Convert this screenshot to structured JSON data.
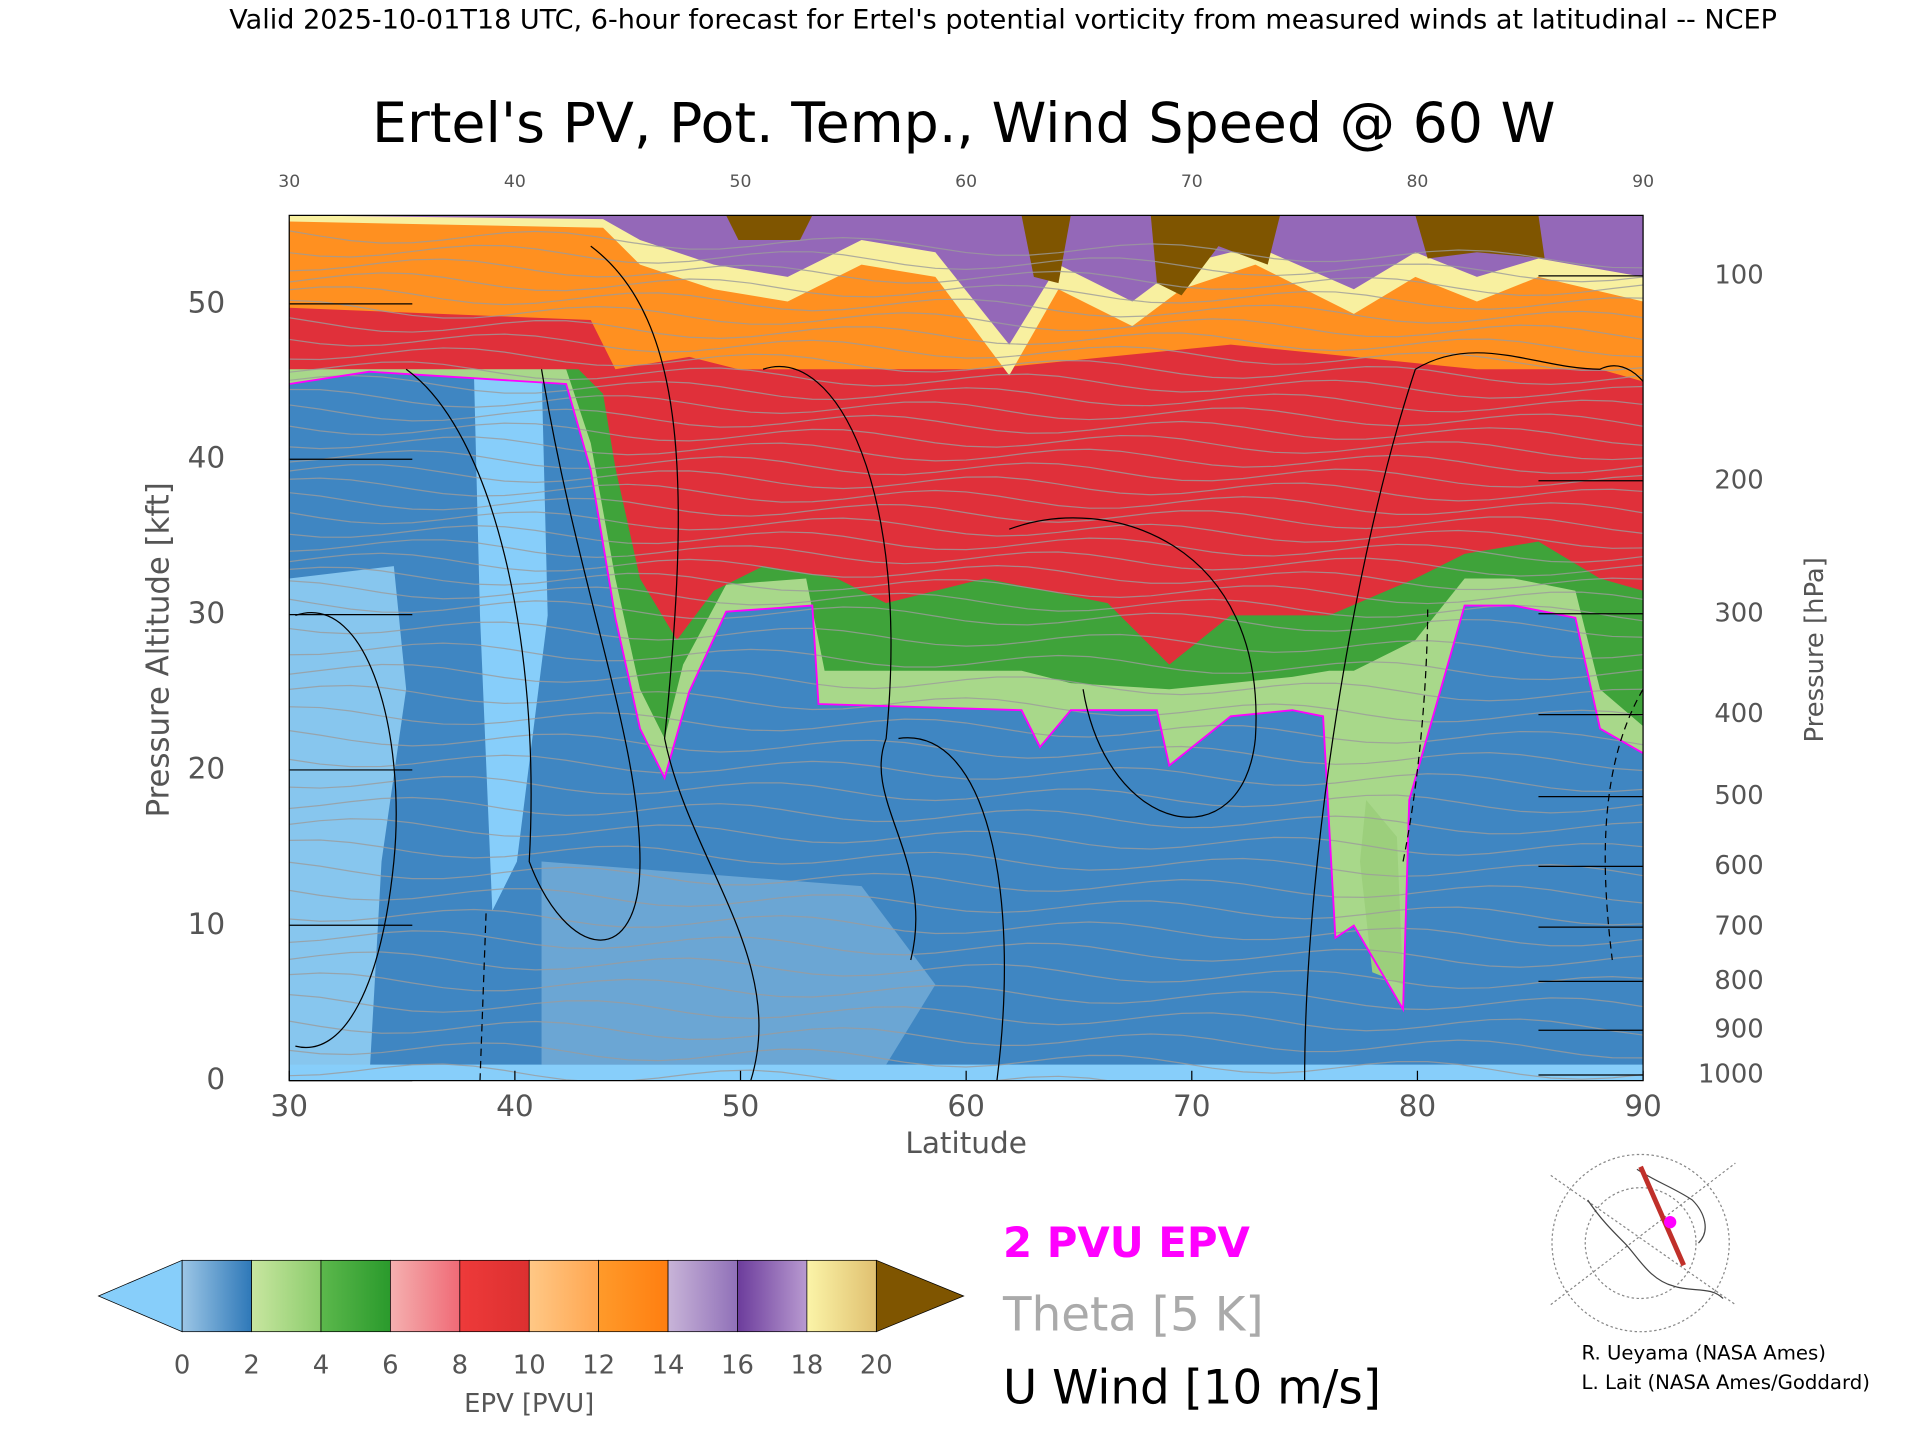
{
  "header": "Valid 2025-10-01T18 UTC, 6-hour forecast for Ertel's potential vorticity from measured winds at latitudinal -- NCEP",
  "chart_data": {
    "type": "cross-section",
    "title": "Ertel's PV, Pot. Temp., Wind Speed @ 60 W",
    "xlabel": "Latitude",
    "ylabel": "Pressure Altitude [kft]",
    "y2label": "Pressure [hPa]",
    "xlim": [
      30,
      90
    ],
    "xticks": [
      30,
      40,
      50,
      60,
      70,
      80,
      90
    ],
    "ylim": [
      0,
      55.7
    ],
    "yticks": [
      0,
      10,
      20,
      30,
      40,
      50
    ],
    "y2scale": "pressure-altitude",
    "y2ticks": [
      100,
      200,
      300,
      400,
      500,
      600,
      700,
      800,
      900,
      1000
    ],
    "colorbar": {
      "label": "EPV [PVU]",
      "ticks": [
        0,
        2,
        4,
        6,
        8,
        10,
        12,
        14,
        16,
        18,
        20
      ],
      "colors": [
        [
          "#9cc6e6",
          "#2e78b8"
        ],
        [
          "#c8e6a0",
          "#8ccc6c"
        ],
        [
          "#5cb84c",
          "#2a9a2c"
        ],
        [
          "#f4b0b0",
          "#f06a76"
        ],
        [
          "#ee3a3a",
          "#dc3030"
        ],
        [
          "#ffc886",
          "#ffa650"
        ],
        [
          "#ff9a2a",
          "#ff7e10"
        ],
        [
          "#c8b4d8",
          "#9070b8"
        ],
        [
          "#6c3c9c",
          "#b89ad0"
        ],
        [
          "#fbf4a8",
          "#e0c070"
        ]
      ],
      "under": "#87cefa",
      "over": "#7f5500"
    },
    "legend": [
      {
        "name": "2 PVU EPV",
        "color": "#ff00ff"
      },
      {
        "name": "Theta [5 K]",
        "color": "#aaaaaa"
      },
      {
        "name": "U Wind [10 m/s]",
        "color": "#000000"
      }
    ],
    "credits": [
      "R. Ueyama (NASA Ames)",
      "L. Lait (NASA Ames/Goddard)"
    ]
  }
}
